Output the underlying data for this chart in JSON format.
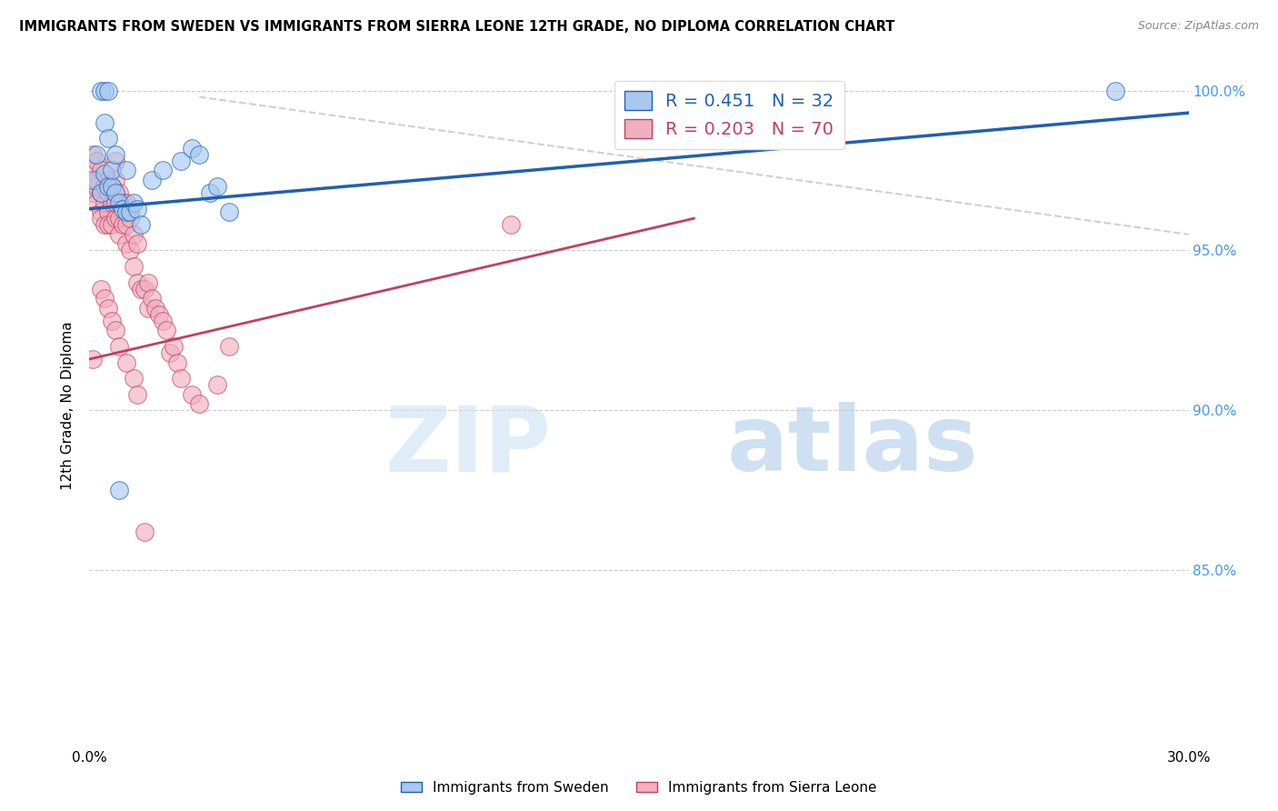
{
  "title": "IMMIGRANTS FROM SWEDEN VS IMMIGRANTS FROM SIERRA LEONE 12TH GRADE, NO DIPLOMA CORRELATION CHART",
  "source": "Source: ZipAtlas.com",
  "ylabel": "12th Grade, No Diploma",
  "legend_label1": "Immigrants from Sweden",
  "legend_label2": "Immigrants from Sierra Leone",
  "r1": 0.451,
  "n1": 32,
  "r2": 0.203,
  "n2": 70,
  "xlim": [
    0.0,
    0.3
  ],
  "ylim": [
    0.795,
    1.008
  ],
  "xticks": [
    0.0,
    0.05,
    0.1,
    0.15,
    0.2,
    0.25,
    0.3
  ],
  "yticks": [
    0.85,
    0.9,
    0.95,
    1.0
  ],
  "yticklabels": [
    "85.0%",
    "90.0%",
    "95.0%",
    "100.0%"
  ],
  "color_sweden": "#a8c8f0",
  "color_sierra": "#f0b0c0",
  "color_sweden_line": "#2060b0",
  "color_sierra_line": "#c04060",
  "color_dash": "#d0d0d0",
  "watermark_zip": "ZIP",
  "watermark_atlas": "atlas",
  "sweden_line_x": [
    0.0,
    0.3
  ],
  "sweden_line_y": [
    0.963,
    0.993
  ],
  "sierra_line_x": [
    0.0,
    0.165
  ],
  "sierra_line_y": [
    0.916,
    0.96
  ],
  "dash_line_x": [
    0.03,
    0.3
  ],
  "dash_line_y": [
    0.998,
    0.955
  ],
  "sweden_x": [
    0.001,
    0.002,
    0.003,
    0.004,
    0.004,
    0.005,
    0.005,
    0.006,
    0.006,
    0.007,
    0.007,
    0.008,
    0.009,
    0.01,
    0.01,
    0.011,
    0.012,
    0.013,
    0.014,
    0.017,
    0.02,
    0.025,
    0.028,
    0.03,
    0.033,
    0.038,
    0.28,
    0.003,
    0.004,
    0.005,
    0.008,
    0.035
  ],
  "sweden_y": [
    0.972,
    0.98,
    0.968,
    0.974,
    0.99,
    0.97,
    0.985,
    0.97,
    0.975,
    0.968,
    0.98,
    0.965,
    0.963,
    0.962,
    0.975,
    0.962,
    0.965,
    0.963,
    0.958,
    0.972,
    0.975,
    0.978,
    0.982,
    0.98,
    0.968,
    0.962,
    1.0,
    1.0,
    1.0,
    1.0,
    0.875,
    0.97
  ],
  "sierra_x": [
    0.001,
    0.001,
    0.001,
    0.001,
    0.002,
    0.002,
    0.002,
    0.002,
    0.003,
    0.003,
    0.003,
    0.003,
    0.004,
    0.004,
    0.004,
    0.005,
    0.005,
    0.005,
    0.005,
    0.006,
    0.006,
    0.006,
    0.007,
    0.007,
    0.007,
    0.007,
    0.007,
    0.008,
    0.008,
    0.008,
    0.009,
    0.009,
    0.01,
    0.01,
    0.01,
    0.011,
    0.011,
    0.012,
    0.012,
    0.013,
    0.013,
    0.014,
    0.015,
    0.016,
    0.016,
    0.017,
    0.018,
    0.019,
    0.02,
    0.021,
    0.022,
    0.023,
    0.024,
    0.025,
    0.028,
    0.03,
    0.035,
    0.038,
    0.115,
    0.001,
    0.003,
    0.004,
    0.005,
    0.006,
    0.007,
    0.008,
    0.01,
    0.012,
    0.013,
    0.015
  ],
  "sierra_y": [
    0.97,
    0.968,
    0.975,
    0.98,
    0.97,
    0.972,
    0.965,
    0.978,
    0.968,
    0.962,
    0.975,
    0.96,
    0.965,
    0.97,
    0.958,
    0.968,
    0.962,
    0.972,
    0.958,
    0.965,
    0.97,
    0.958,
    0.968,
    0.972,
    0.96,
    0.978,
    0.965,
    0.96,
    0.955,
    0.968,
    0.958,
    0.965,
    0.952,
    0.958,
    0.965,
    0.95,
    0.96,
    0.945,
    0.955,
    0.94,
    0.952,
    0.938,
    0.938,
    0.932,
    0.94,
    0.935,
    0.932,
    0.93,
    0.928,
    0.925,
    0.918,
    0.92,
    0.915,
    0.91,
    0.905,
    0.902,
    0.908,
    0.92,
    0.958,
    0.916,
    0.938,
    0.935,
    0.932,
    0.928,
    0.925,
    0.92,
    0.915,
    0.91,
    0.905,
    0.862
  ]
}
